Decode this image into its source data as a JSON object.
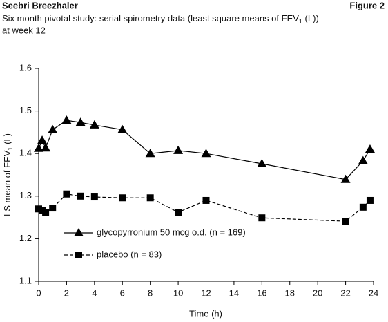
{
  "header": {
    "left": "Seebri Breezhaler",
    "right": "Figure 2"
  },
  "chart_data": {
    "type": "line",
    "title": {
      "text": "Six month pivotal study: serial spirometry data (least square means of FEV",
      "sub": "1",
      "tail": " (L))",
      "line2": "at week 12"
    },
    "x_label": "Time (h)",
    "y_label": {
      "text": "LS mean of FEV",
      "sub": "1",
      "tail": " (L)"
    },
    "x": [
      0,
      0.25,
      0.5,
      1,
      2,
      3,
      4,
      6,
      8,
      10,
      12,
      16,
      22,
      23.25,
      23.75
    ],
    "series": [
      {
        "name": "glycopyrronium 50 mcg o.d. (n = 169)",
        "color": "#000000",
        "marker": "triangle",
        "dashed": false,
        "values": [
          1.412,
          1.431,
          1.413,
          1.456,
          1.478,
          1.473,
          1.467,
          1.456,
          1.4,
          1.407,
          1.4,
          1.376,
          1.339,
          1.383,
          1.41
        ]
      },
      {
        "name": "placebo (n = 83)",
        "color": "#000000",
        "marker": "square",
        "dashed": true,
        "values": [
          1.27,
          1.266,
          1.262,
          1.272,
          1.305,
          1.3,
          1.298,
          1.296,
          1.296,
          1.262,
          1.29,
          1.249,
          1.241,
          1.274,
          1.29
        ]
      }
    ],
    "xlim": [
      0,
      24
    ],
    "xticks": [
      0,
      2,
      4,
      6,
      8,
      10,
      12,
      14,
      16,
      18,
      20,
      22,
      24
    ],
    "ylim": [
      1.1,
      1.6
    ],
    "yticks": [
      1.1,
      1.2,
      1.3,
      1.4,
      1.5,
      1.6
    ],
    "grid": false,
    "legend": "lower-left"
  }
}
